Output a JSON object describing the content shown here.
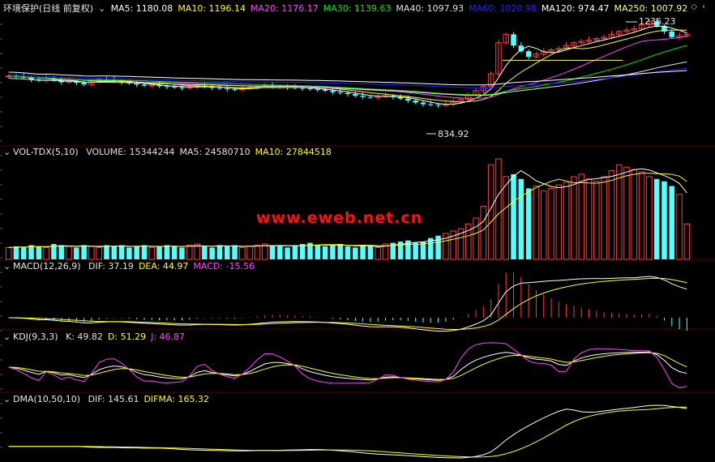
{
  "colors": {
    "background": "#000000",
    "up": "#ff3b3b",
    "down": "#54ffff",
    "divider": "#5a0000",
    "ma5": "#ffffff",
    "ma10": "#ffff00",
    "ma20": "#ff44ff",
    "ma30": "#00e600",
    "ma40": "#e0e0e0",
    "ma60": "#2020ff",
    "ma120": "#ffffff",
    "ma250": "#ffff66"
  },
  "main_panel": {
    "stock_name": "环境保护(日线 前复权)",
    "indicators": [
      {
        "label": "MA5:",
        "value": "1180.08",
        "color": "#ffffff"
      },
      {
        "label": "MA10:",
        "value": "1196.14",
        "color": "#ffff00"
      },
      {
        "label": "MA20:",
        "value": "1176.17",
        "color": "#ff44ff"
      },
      {
        "label": "MA30:",
        "value": "1139.63",
        "color": "#00e600"
      },
      {
        "label": "MA40:",
        "value": "1097.93",
        "color": "#e0e0e0"
      },
      {
        "label": "MA60:",
        "value": "1020.98",
        "color": "#2222ff"
      },
      {
        "label": "MA120:",
        "value": "974.47",
        "color": "#ffffff"
      },
      {
        "label": "MA250:",
        "value": "1007.92",
        "color": "#ffff66"
      }
    ],
    "high_annotation": "1236.23",
    "low_annotation": "834.92",
    "header_icons": [
      "diamond-icon",
      "chevron-left-icon"
    ]
  },
  "volume_panel": {
    "title": "VOL-TDX(5,10)",
    "indicators": [
      {
        "label": "VOLUME:",
        "value": "15344244",
        "color": "#e0e0e0"
      },
      {
        "label": "MA5:",
        "value": "24580710",
        "color": "#e0e0e0"
      },
      {
        "label": "MA10:",
        "value": "27844518",
        "color": "#ffff00"
      }
    ]
  },
  "macd_panel": {
    "title": "MACD(12,26,9)",
    "indicators": [
      {
        "label": "DIF:",
        "value": "37.19",
        "color": "#e0e0e0"
      },
      {
        "label": "DEA:",
        "value": "44.97",
        "color": "#ffff00"
      },
      {
        "label": "MACD:",
        "value": "-15.56",
        "color": "#ff44ff"
      }
    ]
  },
  "kdj_panel": {
    "title": "KDJ(9,3,3)",
    "indicators": [
      {
        "label": "K:",
        "value": "49.82",
        "color": "#e0e0e0"
      },
      {
        "label": "D:",
        "value": "51.29",
        "color": "#ffff00"
      },
      {
        "label": "J:",
        "value": "46.87",
        "color": "#ff44ff"
      }
    ]
  },
  "dma_panel": {
    "title": "DMA(10,50,10)",
    "indicators": [
      {
        "label": "DIF:",
        "value": "145.61",
        "color": "#e0e0e0"
      },
      {
        "label": "DIFMA:",
        "value": "165.32",
        "color": "#ffff00"
      }
    ]
  },
  "watermark": "www.eweb.net.cn",
  "chart_data": {
    "type": "candlestick",
    "description_series": "daily candles with moving averages and volume, MACD, KDJ, DMA sub-indicators",
    "price_range": [
      800,
      1260
    ],
    "close": [
      1042,
      1040,
      1036,
      1030,
      1026,
      1035,
      1028,
      1020,
      1025,
      1018,
      1012,
      1022,
      1030,
      1028,
      1024,
      1020,
      1016,
      1012,
      1008,
      1010,
      1006,
      1004,
      1002,
      1000,
      1004,
      1008,
      1005,
      1000,
      998,
      995,
      994,
      998,
      1002,
      1006,
      1008,
      1006,
      1004,
      1002,
      1000,
      998,
      996,
      994,
      990,
      985,
      982,
      978,
      972,
      968,
      966,
      970,
      972,
      968,
      962,
      955,
      948,
      942,
      940,
      938,
      942,
      950,
      960,
      975,
      990,
      1005,
      1050,
      1160,
      1190,
      1150,
      1130,
      1110,
      1120,
      1130,
      1135,
      1140,
      1150,
      1160,
      1165,
      1170,
      1175,
      1180,
      1190,
      1200,
      1205,
      1210,
      1225,
      1236,
      1220,
      1200,
      1180,
      1185,
      1190
    ],
    "volume": [
      10,
      11,
      10,
      12,
      11,
      10,
      13,
      12,
      11,
      10,
      12,
      11,
      10,
      12,
      11,
      12,
      10,
      11,
      12,
      10,
      11,
      12,
      11,
      10,
      12,
      13,
      11,
      10,
      12,
      11,
      12,
      10,
      11,
      12,
      13,
      12,
      11,
      10,
      12,
      13,
      14,
      12,
      11,
      12,
      13,
      11,
      10,
      12,
      11,
      10,
      13,
      14,
      15,
      16,
      14,
      15,
      18,
      20,
      22,
      24,
      26,
      30,
      35,
      45,
      80,
      85,
      70,
      72,
      68,
      60,
      62,
      58,
      60,
      63,
      65,
      70,
      72,
      68,
      66,
      70,
      75,
      80,
      78,
      76,
      74,
      70,
      68,
      66,
      62,
      55,
      30
    ]
  }
}
